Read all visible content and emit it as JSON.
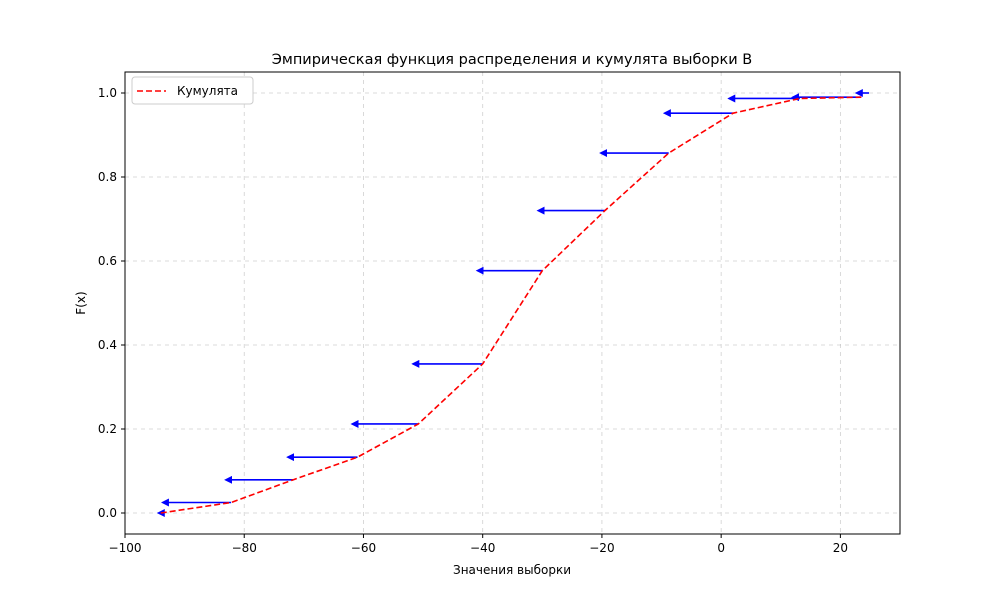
{
  "chart_data": {
    "type": "line",
    "title": "Эмпирическая функция распределения и кумулята выборки B",
    "xlabel": "Значения выборки",
    "ylabel": "F(x)",
    "xlim": [
      -100,
      30
    ],
    "ylim": [
      -0.05,
      1.05
    ],
    "xticks": [
      -100,
      -80,
      -60,
      -40,
      -20,
      0,
      20
    ],
    "xtick_labels": [
      "−100",
      "−80",
      "−60",
      "−40",
      "−20",
      "0",
      "20"
    ],
    "yticks": [
      0.0,
      0.2,
      0.4,
      0.6,
      0.8,
      1.0
    ],
    "ytick_labels": [
      "0.0",
      "0.2",
      "0.4",
      "0.6",
      "0.8",
      "1.0"
    ],
    "grid": true,
    "legend_position": "top-left",
    "series": [
      {
        "name": "Кумулята",
        "style": "dashed",
        "color": "#ff0000",
        "x": [
          -94,
          -82.2,
          -71.8,
          -61,
          -50.8,
          -40,
          -30,
          -19.5,
          -8.8,
          2,
          13.2,
          23.5
        ],
        "y": [
          0.0,
          0.025,
          0.079,
          0.133,
          0.212,
          0.355,
          0.577,
          0.72,
          0.857,
          0.952,
          0.987,
          0.99
        ]
      }
    ],
    "ecdf_steps": {
      "color": "#0000ff",
      "segments": [
        {
          "x_start": -82.2,
          "x_end": -92.8,
          "y": 0.025
        },
        {
          "x_start": -71.8,
          "x_end": -82.2,
          "y": 0.079
        },
        {
          "x_start": -61,
          "x_end": -71.8,
          "y": 0.133
        },
        {
          "x_start": -50.8,
          "x_end": -61,
          "y": 0.212
        },
        {
          "x_start": -40,
          "x_end": -50.8,
          "y": 0.355
        },
        {
          "x_start": -30,
          "x_end": -40,
          "y": 0.577
        },
        {
          "x_start": -19.5,
          "x_end": -29.8,
          "y": 0.72
        },
        {
          "x_start": -8.8,
          "x_end": -19.3,
          "y": 0.857
        },
        {
          "x_start": 2,
          "x_end": -8.6,
          "y": 0.952
        },
        {
          "x_start": 13.2,
          "x_end": 2.2,
          "y": 0.987
        },
        {
          "x_start": 23.5,
          "x_end": 12.9,
          "y": 0.99
        },
        {
          "x_start": 24.8,
          "x_end": 23.6,
          "y": 1.0
        }
      ],
      "start_marker": {
        "x": -94,
        "y": 0.0
      }
    }
  }
}
